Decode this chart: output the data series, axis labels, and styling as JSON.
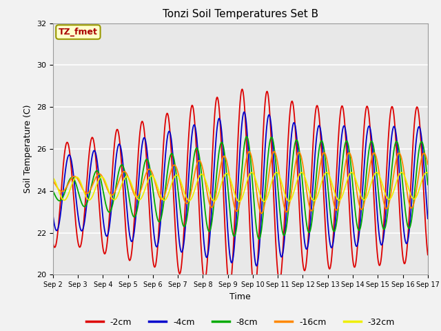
{
  "title": "Tonzi Soil Temperatures Set B",
  "xlabel": "Time",
  "ylabel": "Soil Temperature (C)",
  "ylim": [
    20,
    32
  ],
  "n_days": 15,
  "annotation": "TZ_fmet",
  "annotation_color": "#aa0000",
  "annotation_bg": "#ffffcc",
  "annotation_edge": "#999900",
  "bg_color": "#e8e8e8",
  "fig_bg": "#f2f2f2",
  "grid_color": "#ffffff",
  "xtick_labels": [
    "Sep 2",
    "Sep 3",
    "Sep 4",
    "Sep 5",
    "Sep 6",
    "Sep 7",
    "Sep 8",
    "Sep 9",
    "Sep 10",
    "Sep 11",
    "Sep 12",
    "Sep 13",
    "Sep 14",
    "Sep 15",
    "Sep 16",
    "Sep 17"
  ],
  "ytick_vals": [
    20,
    22,
    24,
    26,
    28,
    30,
    32
  ],
  "legend": [
    {
      "label": "-2cm",
      "color": "#dd0000"
    },
    {
      "label": "-4cm",
      "color": "#0000cc"
    },
    {
      "label": "-8cm",
      "color": "#00aa00"
    },
    {
      "label": "-16cm",
      "color": "#ff8800"
    },
    {
      "label": "-32cm",
      "color": "#eeee00"
    }
  ],
  "line_width": 1.3
}
